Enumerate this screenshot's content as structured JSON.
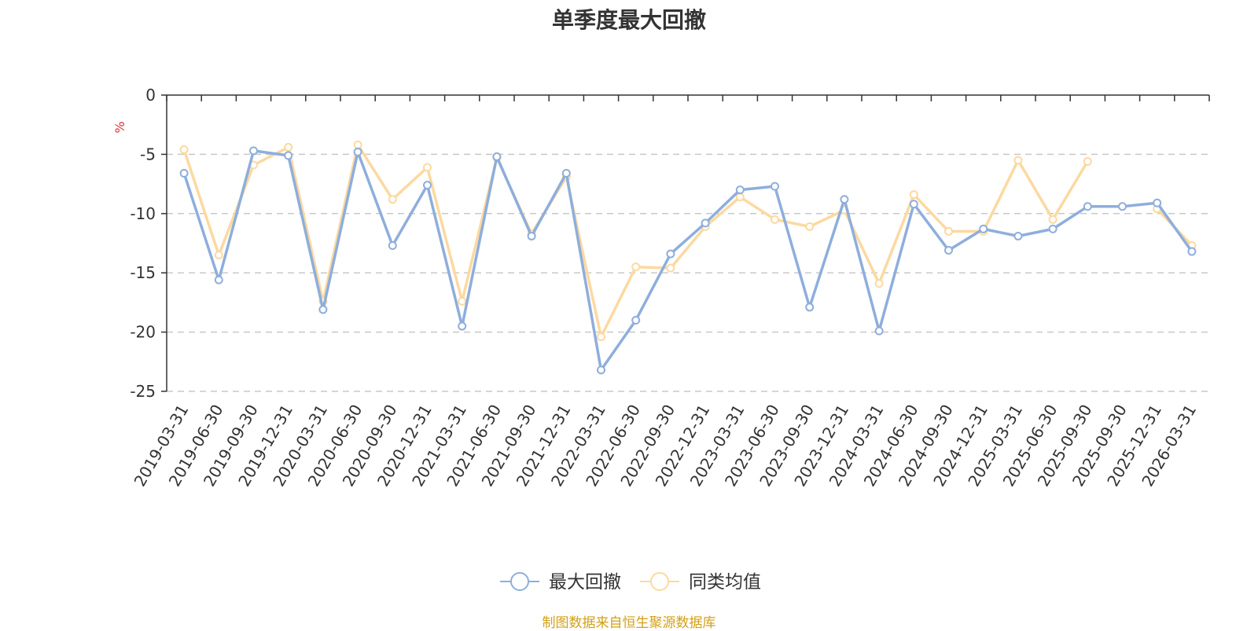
{
  "chart_data": {
    "type": "line",
    "title": "单季度最大回撤",
    "ylabel": "%",
    "ylim": [
      -25,
      0
    ],
    "yticks": [
      0,
      -5,
      -10,
      -15,
      -20,
      -25
    ],
    "grid": true,
    "legend_position": "bottom",
    "categories": [
      "2019-03-31",
      "2019-06-30",
      "2019-09-30",
      "2019-12-31",
      "2020-03-31",
      "2020-06-30",
      "2020-09-30",
      "2020-12-31",
      "2021-03-31",
      "2021-06-30",
      "2021-09-30",
      "2021-12-31",
      "2022-03-31",
      "2022-06-30",
      "2022-09-30",
      "2022-12-31",
      "2023-03-31",
      "2023-06-30",
      "2023-09-30",
      "2023-12-31",
      "2024-03-31",
      "2024-06-30",
      "2024-09-30",
      "2024-12-31",
      "2025-03-31",
      "2025-06-30",
      "2025-09-30",
      "2025-09-30",
      "2025-12-31",
      "2026-03-31"
    ],
    "series": [
      {
        "name": "最大回撤",
        "color": "#8eaedc",
        "values": [
          -6.6,
          -15.6,
          -4.7,
          -5.1,
          -18.1,
          -4.8,
          -12.7,
          -7.6,
          -19.5,
          -5.2,
          -11.9,
          -6.6,
          -23.2,
          -19.0,
          -13.4,
          -10.8,
          -8.0,
          -7.7,
          -17.9,
          -8.8,
          -19.9,
          -9.2,
          -13.1,
          -11.3,
          -11.9,
          -11.3,
          -9.4,
          -9.4,
          -9.1,
          -13.2
        ]
      },
      {
        "name": "同类均值",
        "color": "#fcd9a0",
        "values": [
          -4.6,
          -13.5,
          -5.9,
          -4.4,
          -17.4,
          -4.2,
          -8.8,
          -6.1,
          -17.4,
          -5.3,
          -11.7,
          -6.9,
          -20.4,
          -14.5,
          -14.6,
          -11.1,
          -8.6,
          -10.5,
          -11.1,
          -9.7,
          -15.9,
          -8.4,
          -11.5,
          -11.5,
          -5.5,
          -10.5,
          -5.6,
          null,
          -9.6,
          -12.7
        ]
      }
    ]
  },
  "footer": {
    "source": "制图数据来自恒生聚源数据库"
  }
}
